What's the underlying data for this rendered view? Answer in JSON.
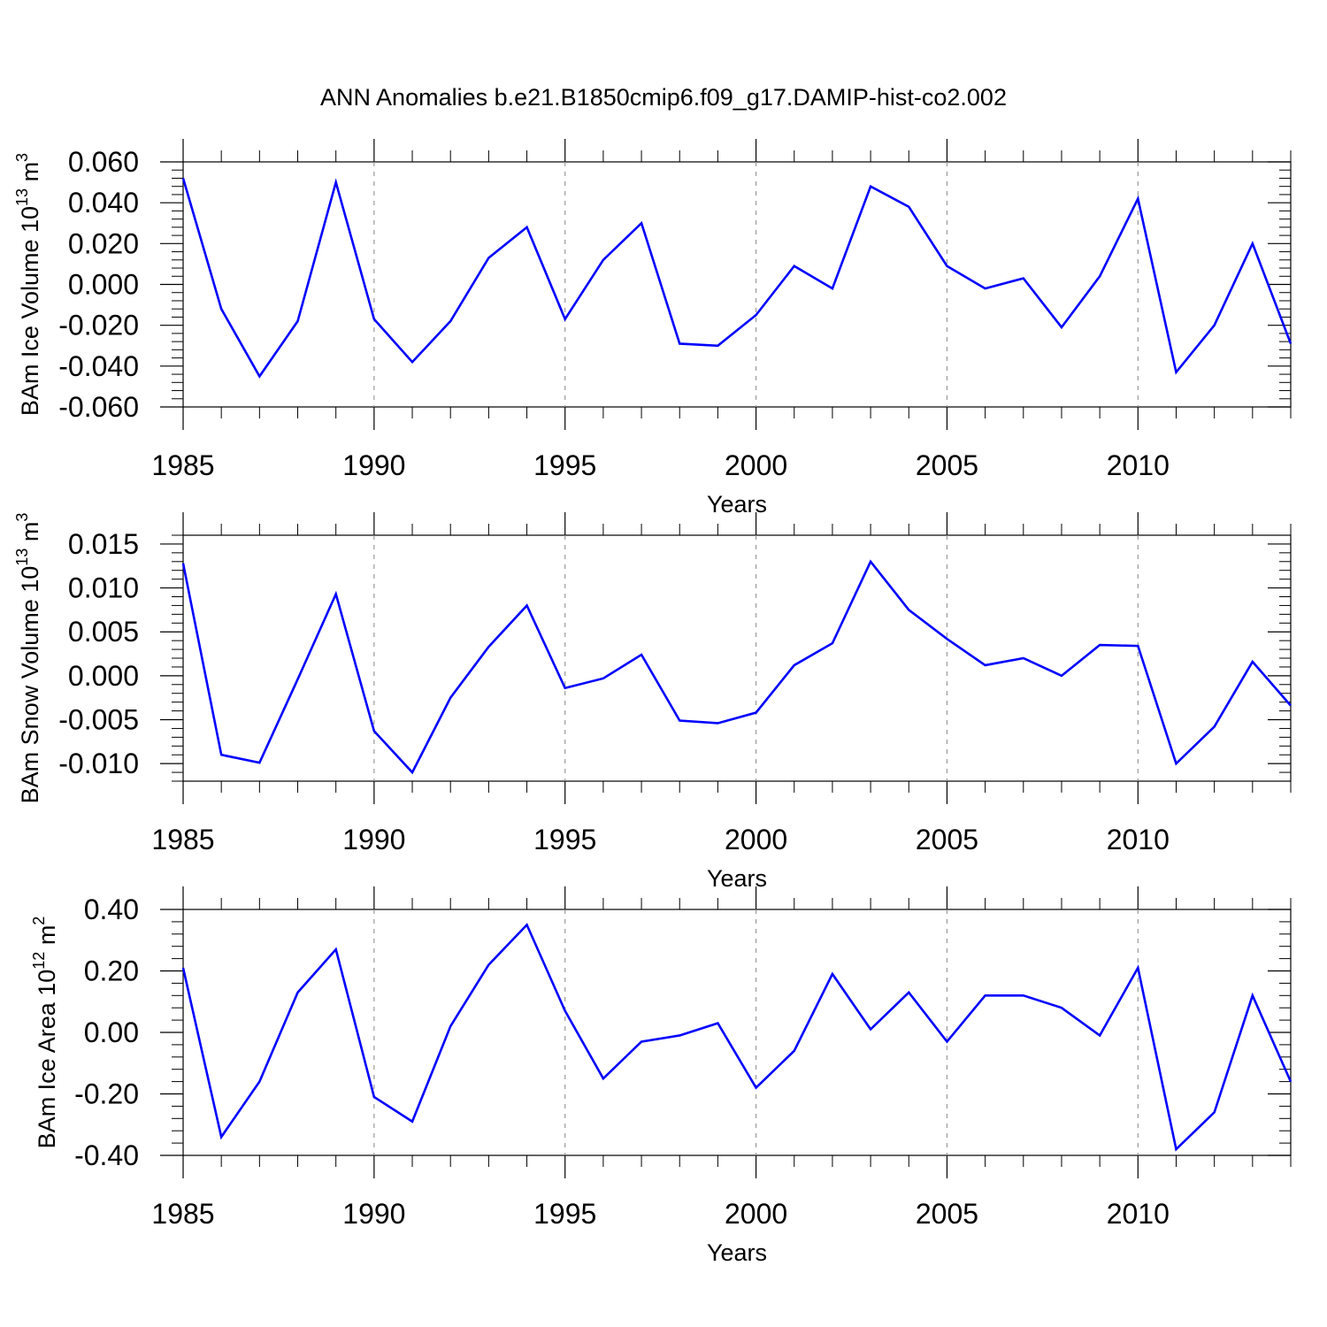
{
  "figure_title": "ANN Anomalies b.e21.B1850cmip6.f09_g17.DAMIP-hist-co2.002",
  "colors": {
    "line": "#0000ff",
    "axis": "#000000",
    "grid": "#999999",
    "background": "#ffffff"
  },
  "chart_data": [
    {
      "type": "line",
      "title": "ANN Anomalies b.e21.B1850cmip6.f09_g17.DAMIP-hist-co2.002",
      "ylabel": "BAm Ice Volume",
      "ylabel_factor": "10",
      "ylabel_exponent": "13",
      "ylabel_unit": "m",
      "ylabel_unit_exponent": "3",
      "xlabel": "Years",
      "xlim": [
        1985,
        2014
      ],
      "ylim": [
        -0.06,
        0.06
      ],
      "xticks": [
        "1985",
        "1990",
        "1995",
        "2000",
        "2005",
        "2010"
      ],
      "yticks": [
        "0.060",
        "0.040",
        "0.020",
        "0.000",
        "-0.020",
        "-0.040",
        "-0.060"
      ],
      "ytick_values": [
        0.06,
        0.04,
        0.02,
        0.0,
        -0.02,
        -0.04,
        -0.06
      ],
      "x": [
        1985,
        1986,
        1987,
        1988,
        1989,
        1990,
        1991,
        1992,
        1993,
        1994,
        1995,
        1996,
        1997,
        1998,
        1999,
        2000,
        2001,
        2002,
        2003,
        2004,
        2005,
        2006,
        2007,
        2008,
        2009,
        2010,
        2011,
        2012,
        2013,
        2014
      ],
      "values": [
        0.052,
        -0.012,
        -0.045,
        -0.018,
        0.05,
        -0.017,
        -0.038,
        -0.018,
        0.013,
        0.028,
        -0.017,
        0.012,
        0.03,
        -0.029,
        -0.03,
        -0.015,
        0.009,
        -0.002,
        0.048,
        0.038,
        0.009,
        -0.002,
        0.003,
        -0.021,
        0.004,
        0.042,
        -0.043,
        -0.02,
        0.02,
        -0.029
      ],
      "grid": "vertical dashed at major x ticks"
    },
    {
      "type": "line",
      "ylabel": "BAm Snow Volume",
      "ylabel_factor": "10",
      "ylabel_exponent": "13",
      "ylabel_unit": "m",
      "ylabel_unit_exponent": "3",
      "xlabel": "Years",
      "xlim": [
        1985,
        2014
      ],
      "ylim": [
        -0.012,
        0.016
      ],
      "xticks": [
        "1985",
        "1990",
        "1995",
        "2000",
        "2005",
        "2010"
      ],
      "yticks": [
        "0.015",
        "0.010",
        "0.005",
        "0.000",
        "-0.005",
        "-0.010"
      ],
      "ytick_values": [
        0.015,
        0.01,
        0.005,
        0.0,
        -0.005,
        -0.01
      ],
      "x": [
        1985,
        1986,
        1987,
        1988,
        1989,
        1990,
        1991,
        1992,
        1993,
        1994,
        1995,
        1996,
        1997,
        1998,
        1999,
        2000,
        2001,
        2002,
        2003,
        2004,
        2005,
        2006,
        2007,
        2008,
        2009,
        2010,
        2011,
        2012,
        2013,
        2014
      ],
      "values": [
        0.0128,
        -0.009,
        -0.0099,
        -0.0004,
        0.0093,
        -0.0063,
        -0.011,
        -0.0025,
        0.0033,
        0.008,
        -0.0014,
        -0.0003,
        0.0024,
        -0.0051,
        -0.0054,
        -0.0042,
        0.0012,
        0.0037,
        0.013,
        0.0075,
        0.0042,
        0.0012,
        0.002,
        0.0,
        0.0035,
        0.0034,
        -0.01,
        -0.0058,
        0.0016,
        -0.0034
      ],
      "grid": "vertical dashed at major x ticks"
    },
    {
      "type": "line",
      "ylabel": "BAm Ice Area",
      "ylabel_factor": "10",
      "ylabel_exponent": "12",
      "ylabel_unit": "m",
      "ylabel_unit_exponent": "2",
      "xlabel": "Years",
      "xlim": [
        1985,
        2014
      ],
      "ylim": [
        -0.4,
        0.4
      ],
      "xticks": [
        "1985",
        "1990",
        "1995",
        "2000",
        "2005",
        "2010"
      ],
      "yticks": [
        "0.40",
        "0.20",
        "0.00",
        "-0.20",
        "-0.40"
      ],
      "ytick_values": [
        0.4,
        0.2,
        0.0,
        -0.2,
        -0.4
      ],
      "x": [
        1985,
        1986,
        1987,
        1988,
        1989,
        1990,
        1991,
        1992,
        1993,
        1994,
        1995,
        1996,
        1997,
        1998,
        1999,
        2000,
        2001,
        2002,
        2003,
        2004,
        2005,
        2006,
        2007,
        2008,
        2009,
        2010,
        2011,
        2012,
        2013,
        2014
      ],
      "values": [
        0.21,
        -0.34,
        -0.16,
        0.13,
        0.27,
        -0.21,
        -0.29,
        0.02,
        0.22,
        0.35,
        0.07,
        -0.15,
        -0.03,
        -0.01,
        0.03,
        -0.18,
        -0.06,
        0.19,
        0.01,
        0.13,
        -0.03,
        0.12,
        0.12,
        0.08,
        -0.01,
        0.21,
        -0.38,
        -0.26,
        0.12,
        -0.16
      ],
      "grid": "vertical dashed at major x ticks"
    }
  ]
}
